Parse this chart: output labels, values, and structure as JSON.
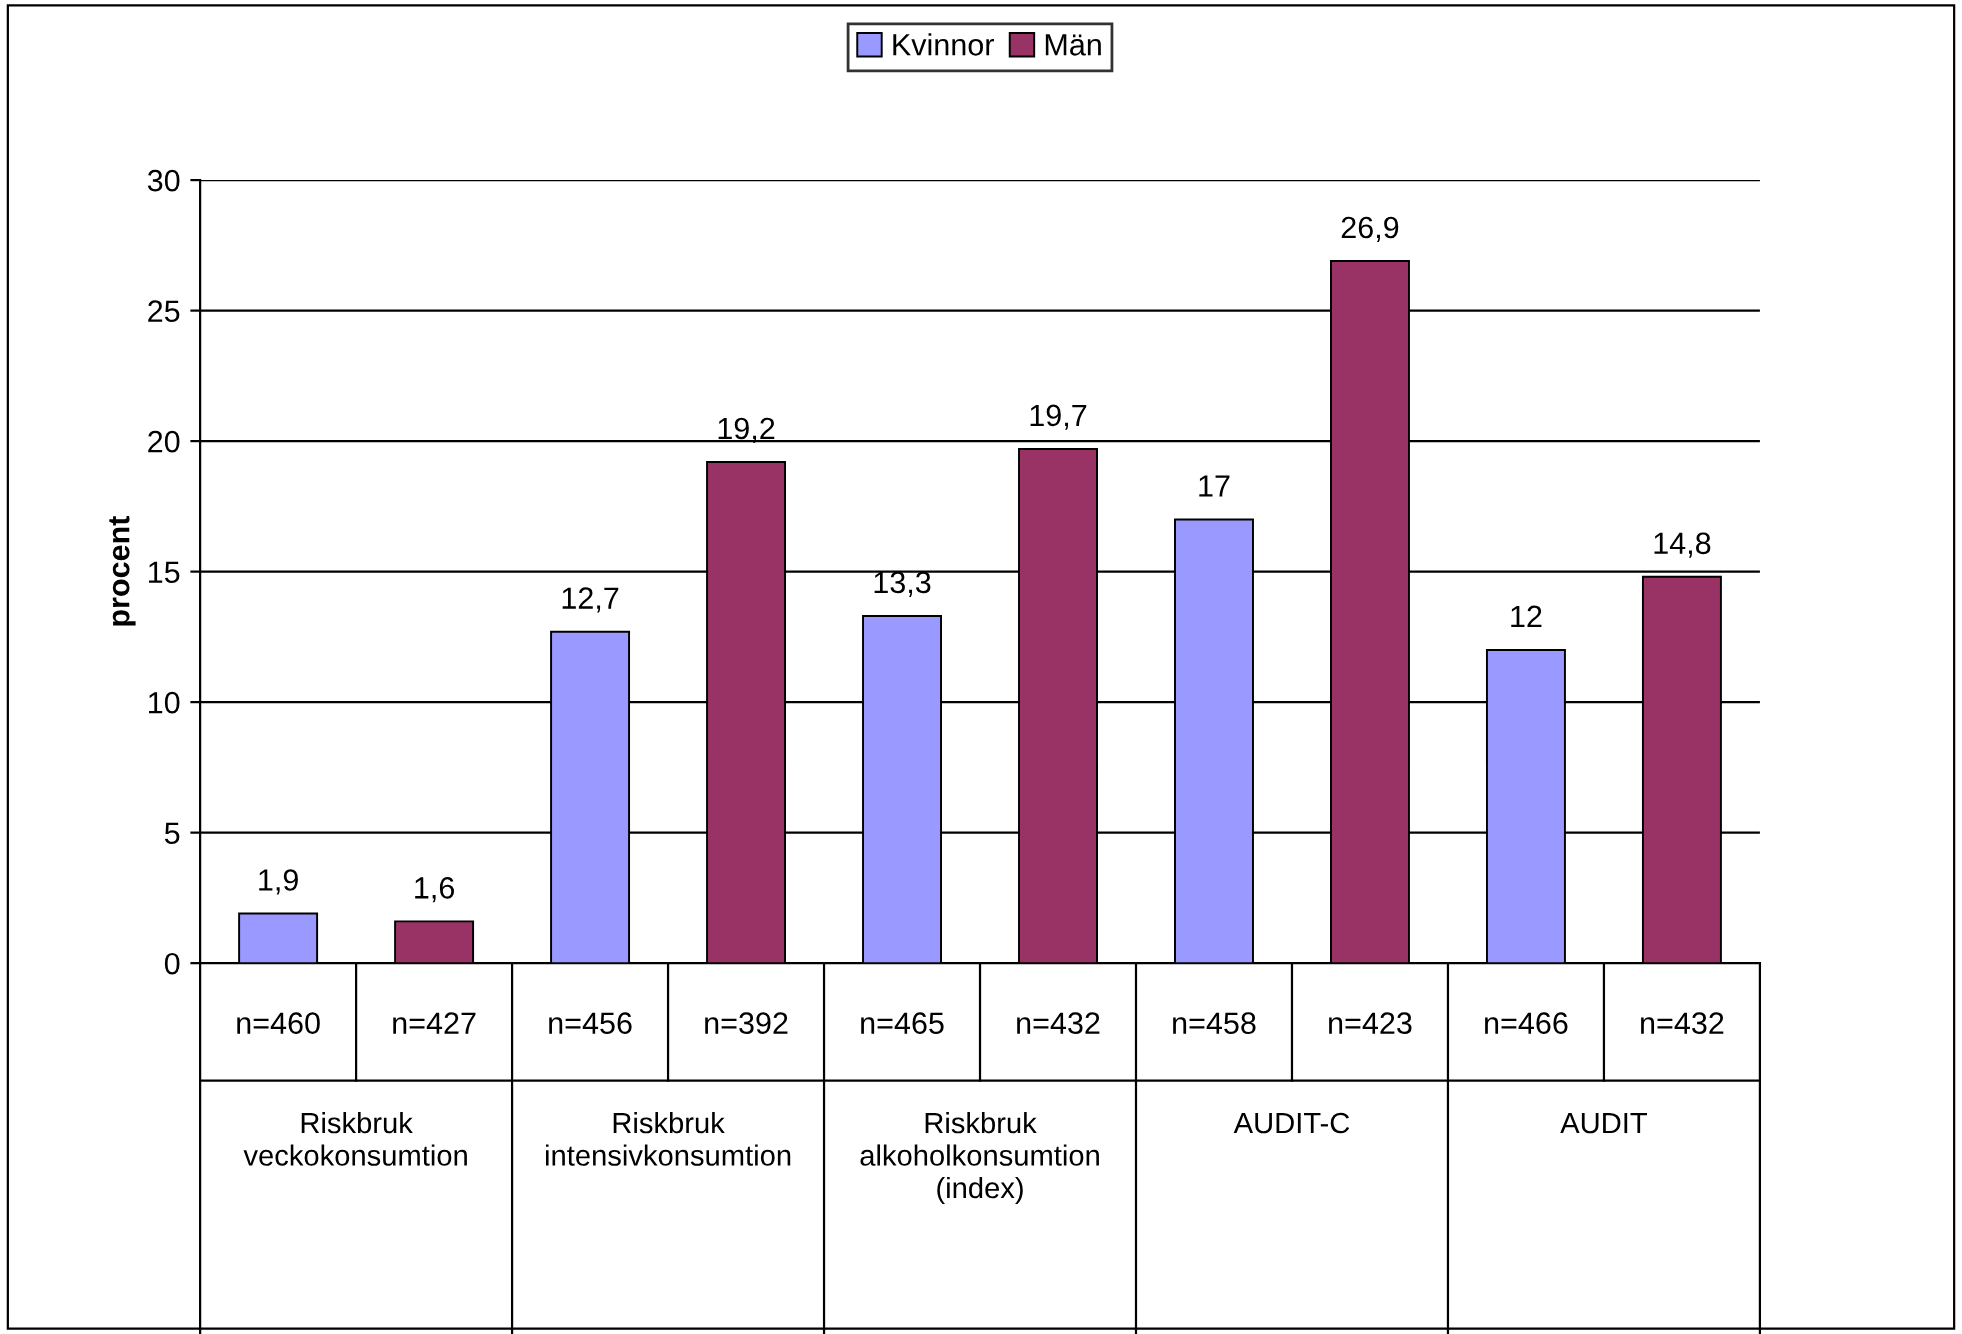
{
  "chart_data": {
    "type": "bar",
    "ylabel": "procent",
    "categories": [
      "n=460",
      "n=427",
      "n=456",
      "n=392",
      "n=465",
      "n=432",
      "n=458",
      "n=423",
      "n=466",
      "n=432"
    ],
    "series": [
      {
        "name": "Kvinnor",
        "color": "#9999ff",
        "values": [
          1.9,
          null,
          12.7,
          null,
          13.3,
          null,
          17,
          null,
          12,
          null
        ],
        "value_labels": [
          "1,9",
          null,
          "12,7",
          null,
          "13,3",
          null,
          "17",
          null,
          "12",
          null
        ]
      },
      {
        "name": "Män",
        "color": "#993366",
        "values": [
          null,
          1.6,
          null,
          19.2,
          null,
          19.7,
          null,
          26.9,
          null,
          14.8
        ],
        "value_labels": [
          null,
          "1,6",
          null,
          "19,2",
          null,
          "19,7",
          null,
          "26,9",
          null,
          "14,8"
        ]
      }
    ],
    "annotations": [
      "Riskbruk\nveckokonsumtion",
      "Riskbruk\nintensivkonsumtion",
      "Riskbruk\nalkoholkonsumtion\n(index)",
      "AUDIT-C",
      "AUDIT"
    ],
    "ylim": [
      0,
      30
    ],
    "yticks": [
      0,
      5,
      10,
      15,
      20,
      25,
      30
    ],
    "grid": "y",
    "legend": "top"
  }
}
